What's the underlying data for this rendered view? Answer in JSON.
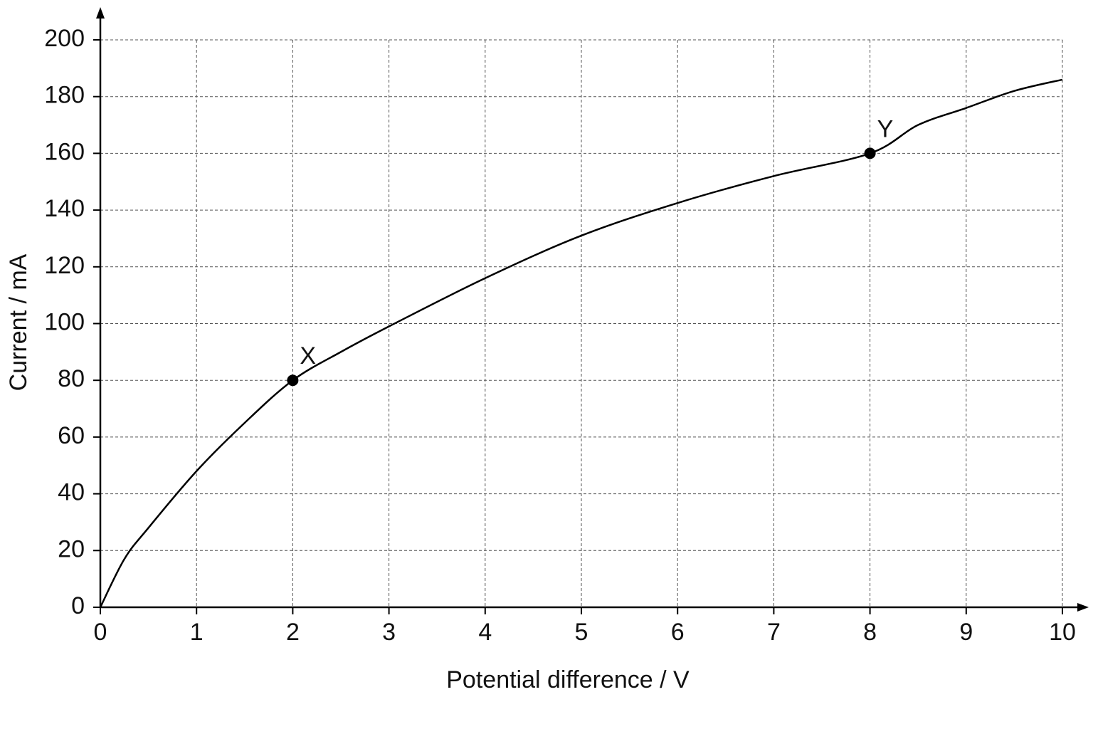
{
  "chart_data": {
    "type": "line",
    "x_label": "Potential difference / V",
    "y_label": "Current / mA",
    "x": [
      0,
      0.25,
      0.5,
      1,
      1.5,
      2,
      2.5,
      3,
      4,
      5,
      6,
      7,
      8,
      8.5,
      9,
      9.5,
      10
    ],
    "series": [
      {
        "color": "#000000",
        "values": [
          0,
          17,
          28,
          48,
          65,
          80,
          90,
          99,
          116,
          131,
          142.5,
          152,
          160,
          170,
          176,
          182,
          186
        ]
      }
    ],
    "points": {
      "x": [
        2,
        8
      ],
      "values": [
        80,
        160
      ],
      "labels": [
        "X",
        "Y"
      ]
    },
    "xlim": [
      0,
      10
    ],
    "xticks": [
      0,
      1,
      2,
      3,
      4,
      5,
      6,
      7,
      8,
      9,
      10
    ],
    "ylim": [
      0,
      200
    ],
    "yticks": [
      0,
      20,
      40,
      60,
      80,
      100,
      120,
      140,
      160,
      180,
      200
    ],
    "grid": true
  }
}
